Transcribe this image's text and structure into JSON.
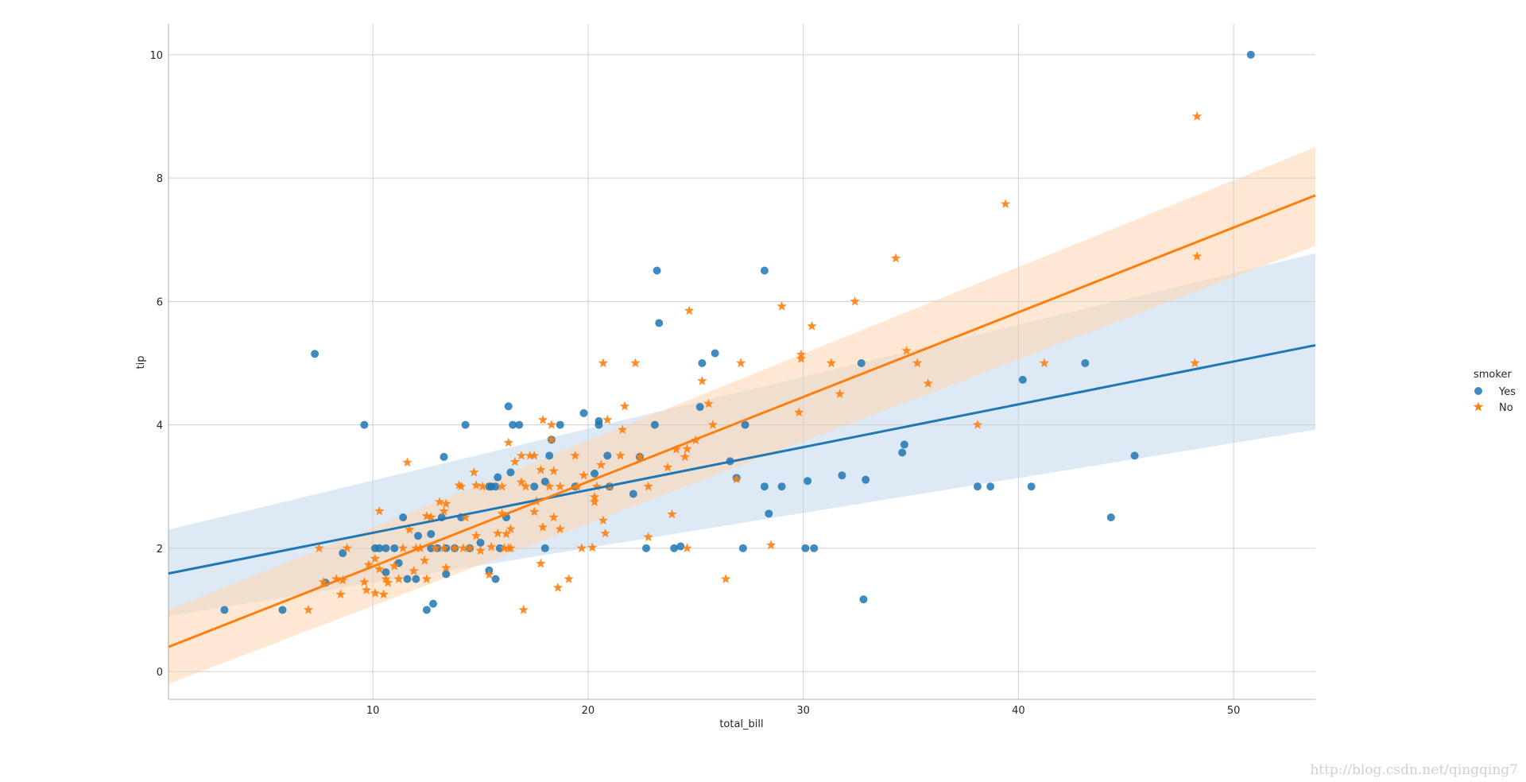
{
  "chart_data": {
    "type": "scatter",
    "title": "",
    "xlabel": "total_bill",
    "ylabel": "tip",
    "xlim": [
      0.5,
      53.8
    ],
    "ylim": [
      -0.45,
      10.5
    ],
    "xticks": [
      10,
      20,
      30,
      40,
      50
    ],
    "yticks": [
      0,
      2,
      4,
      6,
      8,
      10
    ],
    "grid": true,
    "legend": {
      "title": "smoker",
      "position": "right"
    },
    "series": [
      {
        "name": "Yes",
        "color": "#1f77b4",
        "marker": "circle",
        "fit": {
          "x": [
            0.5,
            53.8
          ],
          "y": [
            1.59,
            5.29
          ]
        },
        "band": {
          "upper": [
            2.3,
            6.78
          ],
          "lower": [
            0.9,
            3.92
          ]
        },
        "points": [
          [
            3.1,
            1.0
          ],
          [
            5.8,
            1.0
          ],
          [
            7.3,
            5.15
          ],
          [
            7.8,
            1.44
          ],
          [
            8.6,
            1.92
          ],
          [
            9.6,
            4.0
          ],
          [
            10.1,
            2.0
          ],
          [
            10.3,
            2.0
          ],
          [
            10.6,
            2.0
          ],
          [
            10.6,
            1.61
          ],
          [
            11.0,
            2.0
          ],
          [
            11.2,
            1.76
          ],
          [
            11.4,
            2.5
          ],
          [
            11.6,
            1.5
          ],
          [
            12.0,
            1.5
          ],
          [
            12.1,
            2.2
          ],
          [
            12.5,
            1.0
          ],
          [
            12.7,
            2.23
          ],
          [
            12.7,
            2.0
          ],
          [
            12.8,
            1.1
          ],
          [
            13.0,
            2.0
          ],
          [
            13.2,
            2.5
          ],
          [
            13.3,
            3.48
          ],
          [
            13.4,
            1.58
          ],
          [
            13.4,
            2.0
          ],
          [
            13.8,
            2.0
          ],
          [
            14.1,
            2.5
          ],
          [
            14.3,
            4.0
          ],
          [
            14.5,
            2.0
          ],
          [
            15.0,
            2.09
          ],
          [
            15.4,
            3.0
          ],
          [
            15.4,
            1.64
          ],
          [
            15.5,
            3.0
          ],
          [
            15.7,
            3.0
          ],
          [
            15.7,
            1.5
          ],
          [
            15.8,
            3.15
          ],
          [
            15.9,
            2.0
          ],
          [
            16.2,
            2.5
          ],
          [
            16.3,
            4.3
          ],
          [
            16.4,
            3.23
          ],
          [
            16.5,
            4.0
          ],
          [
            16.8,
            4.0
          ],
          [
            17.5,
            3.0
          ],
          [
            18.0,
            3.08
          ],
          [
            18.0,
            2.0
          ],
          [
            18.2,
            3.5
          ],
          [
            18.3,
            3.76
          ],
          [
            18.7,
            4.0
          ],
          [
            19.4,
            3.0
          ],
          [
            19.8,
            4.19
          ],
          [
            20.3,
            3.21
          ],
          [
            20.5,
            4.06
          ],
          [
            20.5,
            4.0
          ],
          [
            20.9,
            3.5
          ],
          [
            21.0,
            3.0
          ],
          [
            22.1,
            2.88
          ],
          [
            22.4,
            3.48
          ],
          [
            22.7,
            2.0
          ],
          [
            23.1,
            4.0
          ],
          [
            23.2,
            6.5
          ],
          [
            23.3,
            5.65
          ],
          [
            24.0,
            2.0
          ],
          [
            24.3,
            2.03
          ],
          [
            25.2,
            4.29
          ],
          [
            25.3,
            5.0
          ],
          [
            25.9,
            5.16
          ],
          [
            26.6,
            3.41
          ],
          [
            26.9,
            3.14
          ],
          [
            27.2,
            2.0
          ],
          [
            27.3,
            4.0
          ],
          [
            28.2,
            3.0
          ],
          [
            28.2,
            6.5
          ],
          [
            28.4,
            2.56
          ],
          [
            29.0,
            3.0
          ],
          [
            30.1,
            2.0
          ],
          [
            30.2,
            3.09
          ],
          [
            30.5,
            2.0
          ],
          [
            31.8,
            3.18
          ],
          [
            32.7,
            5.0
          ],
          [
            32.8,
            1.17
          ],
          [
            32.9,
            3.11
          ],
          [
            34.6,
            3.55
          ],
          [
            34.7,
            3.68
          ],
          [
            38.1,
            3.0
          ],
          [
            38.7,
            3.0
          ],
          [
            40.2,
            4.73
          ],
          [
            40.6,
            3.0
          ],
          [
            43.1,
            5.0
          ],
          [
            44.3,
            2.5
          ],
          [
            45.4,
            3.5
          ],
          [
            50.8,
            10.0
          ]
        ]
      },
      {
        "name": "No",
        "color": "#ff7f0e",
        "marker": "star",
        "fit": {
          "x": [
            0.5,
            53.8
          ],
          "y": [
            0.4,
            7.72
          ]
        },
        "band": {
          "upper": [
            1.0,
            8.5
          ],
          "lower": [
            -0.2,
            6.9
          ]
        },
        "points": [
          [
            7.0,
            1.0
          ],
          [
            7.5,
            2.0
          ],
          [
            7.7,
            1.45
          ],
          [
            8.3,
            1.5
          ],
          [
            8.5,
            1.25
          ],
          [
            8.6,
            1.48
          ],
          [
            8.8,
            2.0
          ],
          [
            9.6,
            1.45
          ],
          [
            9.7,
            1.32
          ],
          [
            9.8,
            1.73
          ],
          [
            10.1,
            1.83
          ],
          [
            10.1,
            1.27
          ],
          [
            10.3,
            1.66
          ],
          [
            10.3,
            2.6
          ],
          [
            10.5,
            1.25
          ],
          [
            10.6,
            1.5
          ],
          [
            10.7,
            1.44
          ],
          [
            11.0,
            1.71
          ],
          [
            11.2,
            1.5
          ],
          [
            11.4,
            2.0
          ],
          [
            11.6,
            3.39
          ],
          [
            11.7,
            2.3
          ],
          [
            11.9,
            1.63
          ],
          [
            12.0,
            2.0
          ],
          [
            12.2,
            2.0
          ],
          [
            12.4,
            1.8
          ],
          [
            12.5,
            2.52
          ],
          [
            12.5,
            1.5
          ],
          [
            12.7,
            2.5
          ],
          [
            12.9,
            2.0
          ],
          [
            13.1,
            2.75
          ],
          [
            13.3,
            2.0
          ],
          [
            13.3,
            2.6
          ],
          [
            13.4,
            1.68
          ],
          [
            13.4,
            2.72
          ],
          [
            13.8,
            2.0
          ],
          [
            14.0,
            3.02
          ],
          [
            14.1,
            3.0
          ],
          [
            14.2,
            2.0
          ],
          [
            14.3,
            2.5
          ],
          [
            14.5,
            2.0
          ],
          [
            14.7,
            3.23
          ],
          [
            14.8,
            2.2
          ],
          [
            14.8,
            3.02
          ],
          [
            15.0,
            1.96
          ],
          [
            15.1,
            3.0
          ],
          [
            15.4,
            1.57
          ],
          [
            15.5,
            2.02
          ],
          [
            15.8,
            2.24
          ],
          [
            16.0,
            3.0
          ],
          [
            16.0,
            2.56
          ],
          [
            16.1,
            2.0
          ],
          [
            16.2,
            2.23
          ],
          [
            16.3,
            3.71
          ],
          [
            16.3,
            2.0
          ],
          [
            16.4,
            2.31
          ],
          [
            16.4,
            2.0
          ],
          [
            16.6,
            3.4
          ],
          [
            16.9,
            3.07
          ],
          [
            16.9,
            3.5
          ],
          [
            17.0,
            1.0
          ],
          [
            17.1,
            3.0
          ],
          [
            17.3,
            3.5
          ],
          [
            17.5,
            2.59
          ],
          [
            17.5,
            3.5
          ],
          [
            17.6,
            2.76
          ],
          [
            17.8,
            3.27
          ],
          [
            17.8,
            1.75
          ],
          [
            17.9,
            2.34
          ],
          [
            17.9,
            4.08
          ],
          [
            18.2,
            3.0
          ],
          [
            18.3,
            3.76
          ],
          [
            18.3,
            4.0
          ],
          [
            18.4,
            2.5
          ],
          [
            18.4,
            3.25
          ],
          [
            18.6,
            1.36
          ],
          [
            18.7,
            2.31
          ],
          [
            18.7,
            3.0
          ],
          [
            19.1,
            1.5
          ],
          [
            19.4,
            3.5
          ],
          [
            19.5,
            3.0
          ],
          [
            19.7,
            2.0
          ],
          [
            19.8,
            3.18
          ],
          [
            20.2,
            2.01
          ],
          [
            20.3,
            2.83
          ],
          [
            20.3,
            2.75
          ],
          [
            20.4,
            3.0
          ],
          [
            20.6,
            3.35
          ],
          [
            20.7,
            5.0
          ],
          [
            20.7,
            2.45
          ],
          [
            20.8,
            2.24
          ],
          [
            20.9,
            4.08
          ],
          [
            21.0,
            3.0
          ],
          [
            21.5,
            3.5
          ],
          [
            21.6,
            3.92
          ],
          [
            21.7,
            4.3
          ],
          [
            22.2,
            5.0
          ],
          [
            22.4,
            3.48
          ],
          [
            22.8,
            2.18
          ],
          [
            22.8,
            3.0
          ],
          [
            23.7,
            3.31
          ],
          [
            23.9,
            2.55
          ],
          [
            24.1,
            3.6
          ],
          [
            24.5,
            3.48
          ],
          [
            24.6,
            2.0
          ],
          [
            24.6,
            3.61
          ],
          [
            24.7,
            5.85
          ],
          [
            25.0,
            3.75
          ],
          [
            25.3,
            4.71
          ],
          [
            25.6,
            4.34
          ],
          [
            25.8,
            4.0
          ],
          [
            26.4,
            1.5
          ],
          [
            26.9,
            3.12
          ],
          [
            27.1,
            5.0
          ],
          [
            28.5,
            2.05
          ],
          [
            29.0,
            5.92
          ],
          [
            29.8,
            4.2
          ],
          [
            29.9,
            5.14
          ],
          [
            29.9,
            5.07
          ],
          [
            30.4,
            5.6
          ],
          [
            31.3,
            5.0
          ],
          [
            31.7,
            4.5
          ],
          [
            32.4,
            6.0
          ],
          [
            34.3,
            6.7
          ],
          [
            34.8,
            5.2
          ],
          [
            35.3,
            5.0
          ],
          [
            35.8,
            4.67
          ],
          [
            38.1,
            4.0
          ],
          [
            39.4,
            7.58
          ],
          [
            41.2,
            5.0
          ],
          [
            48.2,
            5.0
          ],
          [
            48.3,
            6.73
          ],
          [
            48.3,
            9.0
          ]
        ]
      }
    ]
  },
  "watermark": "http://blog.csdn.net/qingqing7"
}
